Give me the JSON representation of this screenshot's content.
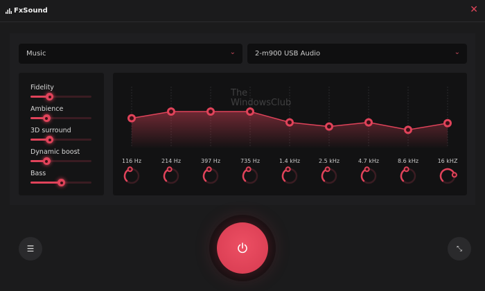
{
  "app": {
    "title": "FxSound",
    "close_icon": "close-icon"
  },
  "preset": {
    "value": "Music"
  },
  "output": {
    "value": "2-m900 USB Audio"
  },
  "effects": [
    {
      "label": "Fidelity",
      "value": 0.31
    },
    {
      "label": "Ambience",
      "value": 0.26
    },
    {
      "label": "3D surround",
      "value": 0.31
    },
    {
      "label": "Dynamic boost",
      "value": 0.26
    },
    {
      "label": "Bass",
      "value": 0.5
    }
  ],
  "eq": {
    "bands": [
      {
        "label": "116 Hz",
        "level": 0.62
      },
      {
        "label": "214 Hz",
        "level": 0.7
      },
      {
        "label": "397 Hz",
        "level": 0.7
      },
      {
        "label": "735 Hz",
        "level": 0.7
      },
      {
        "label": "1.4 kHz",
        "level": 0.57
      },
      {
        "label": "2.5 kHz",
        "level": 0.52
      },
      {
        "label": "4.7 kHz",
        "level": 0.57
      },
      {
        "label": "8.6 kHz",
        "level": 0.48
      },
      {
        "label": "16 kHZ",
        "level": 0.56
      }
    ],
    "knobs": [
      0.45,
      0.45,
      0.45,
      0.45,
      0.45,
      0.45,
      0.45,
      0.45,
      0.8
    ]
  },
  "watermark": "The WindowsClub",
  "colors": {
    "accent": "#e0435a",
    "background": "#1b1b1c"
  }
}
